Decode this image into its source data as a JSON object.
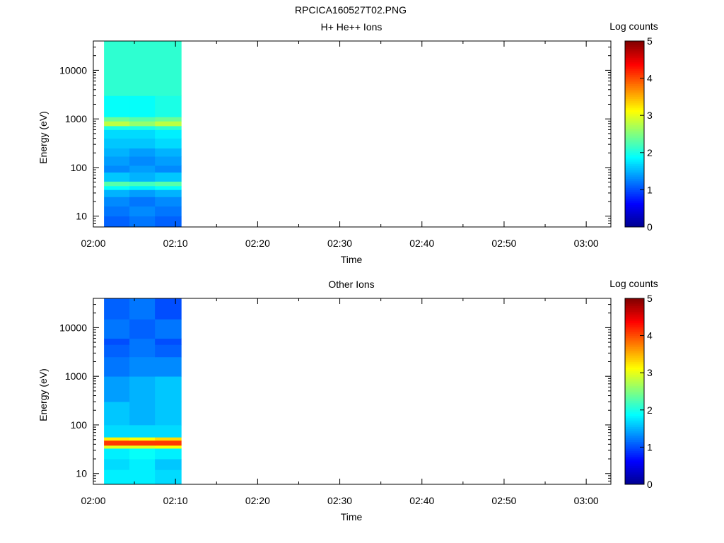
{
  "figure_title": "RPCICA160527T02.PNG",
  "colormap": [
    "#00008f",
    "#0000ff",
    "#0080ff",
    "#00ffff",
    "#80ff80",
    "#ffff00",
    "#ff8000",
    "#ff0000",
    "#800000"
  ],
  "chart_data": [
    {
      "type": "heatmap",
      "title": "H+ He++ Ions",
      "xlabel": "Time",
      "ylabel": "Energy (eV)",
      "x_ticks": [
        "02:00",
        "02:10",
        "02:20",
        "02:30",
        "02:40",
        "02:50",
        "03:00"
      ],
      "xlim_minutes": [
        0,
        63
      ],
      "y_scale": "log",
      "ylim": [
        6,
        40000
      ],
      "y_ticks": [
        "10",
        "100",
        "1000",
        "10000"
      ],
      "colorbar": {
        "label": "Log counts",
        "range": [
          0,
          5
        ],
        "ticks": [
          "0",
          "1",
          "2",
          "3",
          "4",
          "5"
        ]
      },
      "time_bins_minutes": [
        [
          1.3,
          4.4
        ],
        [
          4.4,
          7.5
        ],
        [
          7.5,
          10.7
        ]
      ],
      "rows": [
        {
          "e": [
            6,
            10
          ],
          "v": [
            1.1,
            1.2,
            1.1
          ]
        },
        {
          "e": [
            10,
            16
          ],
          "v": [
            1.2,
            1.3,
            1.2
          ]
        },
        {
          "e": [
            16,
            25
          ],
          "v": [
            1.3,
            1.2,
            1.3
          ]
        },
        {
          "e": [
            25,
            35
          ],
          "v": [
            1.5,
            1.4,
            1.5
          ]
        },
        {
          "e": [
            35,
            42
          ],
          "v": [
            1.9,
            1.8,
            1.9
          ]
        },
        {
          "e": [
            42,
            52
          ],
          "v": [
            2.3,
            2.2,
            2.3
          ]
        },
        {
          "e": [
            52,
            80
          ],
          "v": [
            1.6,
            1.5,
            1.6
          ]
        },
        {
          "e": [
            80,
            110
          ],
          "v": [
            1.3,
            1.4,
            1.3
          ]
        },
        {
          "e": [
            110,
            170
          ],
          "v": [
            1.4,
            1.3,
            1.4
          ]
        },
        {
          "e": [
            170,
            250
          ],
          "v": [
            1.5,
            1.4,
            1.5
          ]
        },
        {
          "e": [
            250,
            400
          ],
          "v": [
            1.6,
            1.6,
            1.7
          ]
        },
        {
          "e": [
            400,
            600
          ],
          "v": [
            1.7,
            1.7,
            1.8
          ]
        },
        {
          "e": [
            600,
            720
          ],
          "v": [
            2.0,
            2.0,
            2.1
          ]
        },
        {
          "e": [
            720,
            900
          ],
          "v": [
            2.8,
            2.6,
            2.8
          ]
        },
        {
          "e": [
            900,
            1100
          ],
          "v": [
            2.4,
            2.3,
            2.4
          ]
        },
        {
          "e": [
            1100,
            3000
          ],
          "v": [
            1.9,
            1.9,
            2.0
          ]
        },
        {
          "e": [
            3000,
            40000
          ],
          "v": [
            2.1,
            2.1,
            2.1
          ]
        }
      ]
    },
    {
      "type": "heatmap",
      "title": "Other Ions",
      "xlabel": "Time",
      "ylabel": "Energy (eV)",
      "x_ticks": [
        "02:00",
        "02:10",
        "02:20",
        "02:30",
        "02:40",
        "02:50",
        "03:00"
      ],
      "xlim_minutes": [
        0,
        63
      ],
      "y_scale": "log",
      "ylim": [
        6,
        40000
      ],
      "y_ticks": [
        "10",
        "100",
        "1000",
        "10000"
      ],
      "colorbar": {
        "label": "Log counts",
        "range": [
          0,
          5
        ],
        "ticks": [
          "0",
          "1",
          "2",
          "3",
          "4",
          "5"
        ]
      },
      "time_bins_minutes": [
        [
          1.3,
          4.4
        ],
        [
          4.4,
          7.5
        ],
        [
          7.5,
          10.7
        ]
      ],
      "rows": [
        {
          "e": [
            6,
            12
          ],
          "v": [
            1.8,
            1.8,
            1.7
          ]
        },
        {
          "e": [
            12,
            20
          ],
          "v": [
            1.7,
            1.8,
            1.6
          ]
        },
        {
          "e": [
            20,
            33
          ],
          "v": [
            1.8,
            1.9,
            1.8
          ]
        },
        {
          "e": [
            33,
            38
          ],
          "v": [
            3.0,
            3.0,
            3.1
          ]
        },
        {
          "e": [
            38,
            48
          ],
          "v": [
            4.1,
            4.1,
            4.1
          ]
        },
        {
          "e": [
            48,
            56
          ],
          "v": [
            3.2,
            3.1,
            3.3
          ]
        },
        {
          "e": [
            56,
            100
          ],
          "v": [
            1.7,
            1.7,
            1.7
          ]
        },
        {
          "e": [
            100,
            300
          ],
          "v": [
            1.6,
            1.5,
            1.6
          ]
        },
        {
          "e": [
            300,
            1000
          ],
          "v": [
            1.4,
            1.5,
            1.6
          ]
        },
        {
          "e": [
            1000,
            2500
          ],
          "v": [
            1.2,
            1.3,
            1.3
          ]
        },
        {
          "e": [
            2500,
            4500
          ],
          "v": [
            1.1,
            1.2,
            1.1
          ]
        },
        {
          "e": [
            4500,
            6000
          ],
          "v": [
            1.0,
            1.2,
            1.0
          ]
        },
        {
          "e": [
            6000,
            15000
          ],
          "v": [
            1.2,
            1.1,
            1.2
          ]
        },
        {
          "e": [
            15000,
            40000
          ],
          "v": [
            1.1,
            1.2,
            1.0
          ]
        }
      ]
    }
  ]
}
